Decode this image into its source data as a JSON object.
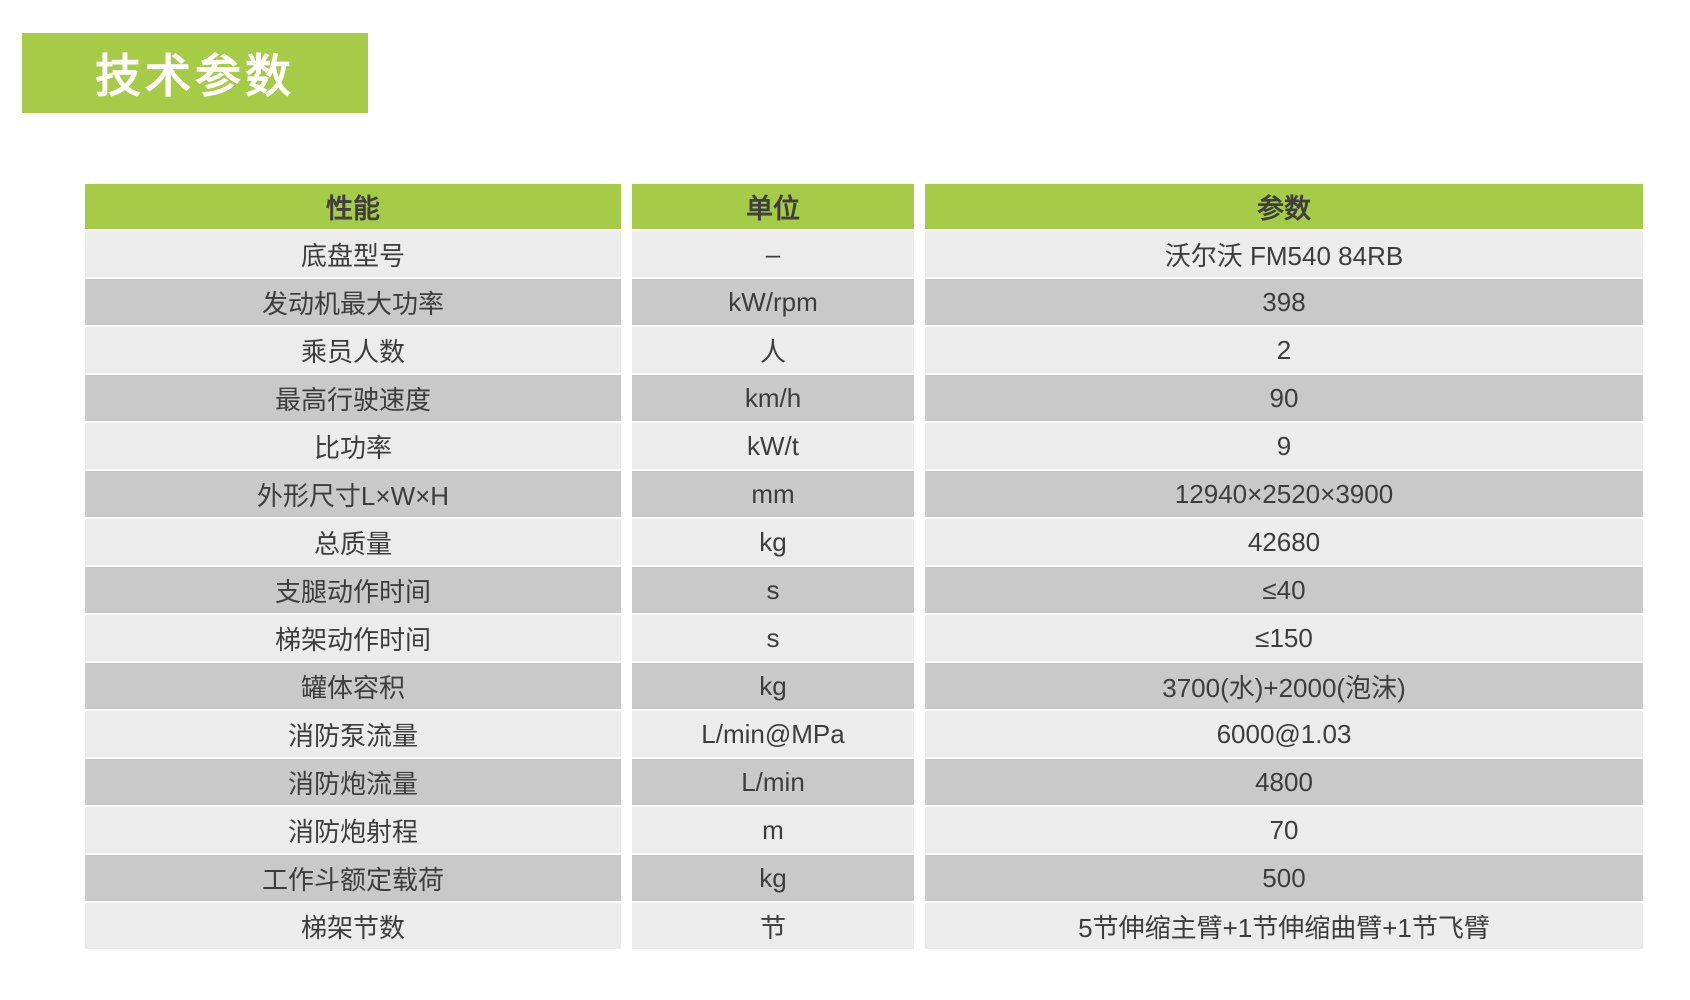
{
  "page": {
    "background_color": "#ffffff",
    "accent_green": "#a6cb47",
    "row_light_color": "#ececec",
    "row_dark_color": "#c9c9c9",
    "text_color": "#3d3d3d"
  },
  "title_badge": {
    "label": "技术参数",
    "background": "#a6cb47",
    "text_color": "#ffffff"
  },
  "table": {
    "columns": [
      "性能",
      "单位",
      "参数"
    ],
    "rows": [
      {
        "label": "底盘型号",
        "unit": "–",
        "value": "沃尔沃 FM540 84RB"
      },
      {
        "label": "发动机最大功率",
        "unit": "kW/rpm",
        "value": "398"
      },
      {
        "label": "乘员人数",
        "unit": "人",
        "value": "2"
      },
      {
        "label": "最高行驶速度",
        "unit": "km/h",
        "value": "90"
      },
      {
        "label": "比功率",
        "unit": "kW/t",
        "value": "9"
      },
      {
        "label": "外形尺寸L×W×H",
        "unit": "mm",
        "value": "12940×2520×3900"
      },
      {
        "label": "总质量",
        "unit": "kg",
        "value": "42680"
      },
      {
        "label": "支腿动作时间",
        "unit": "s",
        "value": "≤40"
      },
      {
        "label": "梯架动作时间",
        "unit": "s",
        "value": "≤150"
      },
      {
        "label": "罐体容积",
        "unit": "kg",
        "value": "3700(水)+2000(泡沫)"
      },
      {
        "label": "消防泵流量",
        "unit": "L/min@MPa",
        "value": "6000@1.03"
      },
      {
        "label": "消防炮流量",
        "unit": "L/min",
        "value": "4800"
      },
      {
        "label": "消防炮射程",
        "unit": "m",
        "value": "70"
      },
      {
        "label": "工作斗额定载荷",
        "unit": "kg",
        "value": "500"
      },
      {
        "label": "梯架节数",
        "unit": "节",
        "value": "5节伸缩主臂+1节伸缩曲臂+1节飞臂"
      }
    ]
  }
}
